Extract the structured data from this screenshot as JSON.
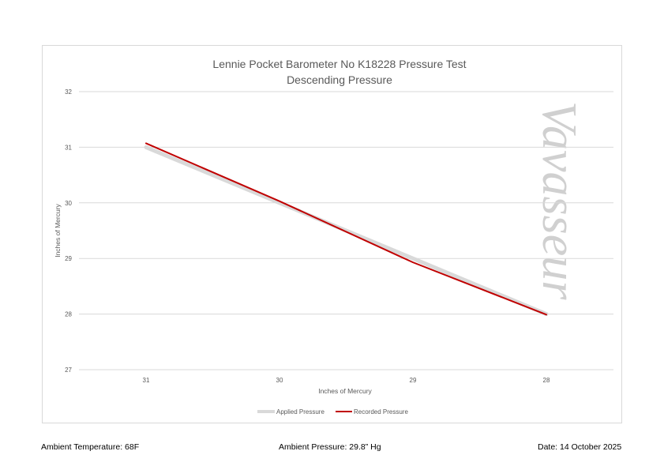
{
  "chart_data": {
    "type": "line",
    "title": "Lennie Pocket Barometer No K18228 Pressure Test",
    "subtitle": "Descending Pressure",
    "xlabel": "Inches of Mercury",
    "ylabel": "Inches of Mercury",
    "categories": [
      "31",
      "30",
      "29",
      "28"
    ],
    "yticks": [
      "27",
      "28",
      "29",
      "30",
      "31",
      "32"
    ],
    "ylim": [
      27,
      32
    ],
    "grid": true,
    "legend_placement": "bottom",
    "series": [
      {
        "name": "Applied Pressure",
        "values": [
          31,
          30,
          29,
          28
        ],
        "color": "#d9d9d9"
      },
      {
        "name": "Recorded Pressure",
        "values": [
          31.07,
          30.03,
          28.93,
          27.99
        ],
        "color": "#c00000"
      }
    ],
    "watermark": "Vavasseur"
  },
  "footer": {
    "temperature": "Ambient Temperature: 68F",
    "pressure": "Ambient Pressure: 29.8” Hg",
    "date": "Date: 14 October 2025"
  }
}
